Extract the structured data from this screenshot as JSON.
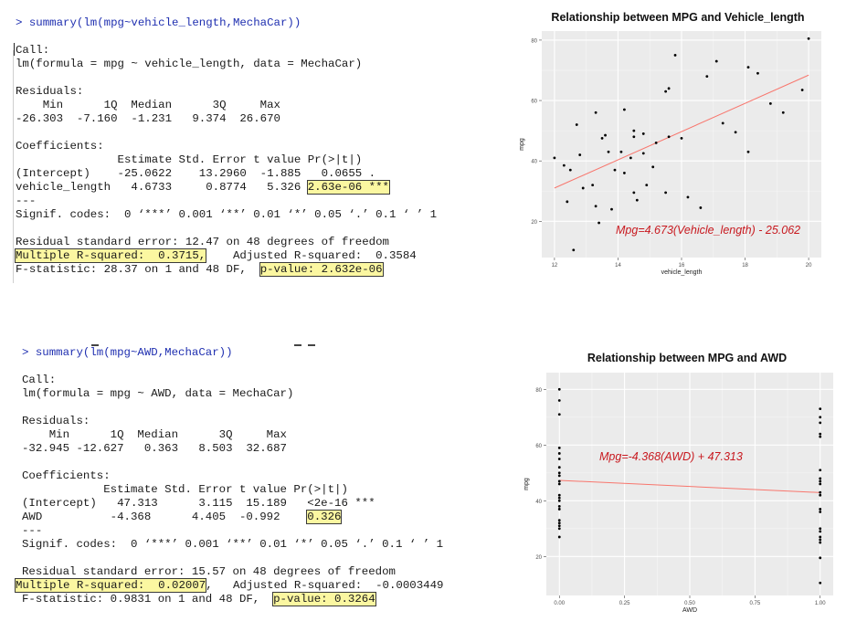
{
  "console1": {
    "lines": [
      "> summary(lm(mpg~vehicle_length,MechaCar))",
      "",
      "Call:",
      "lm(formula = mpg ~ vehicle_length, data = MechaCar)",
      "",
      "Residuals:",
      "    Min      1Q  Median      3Q     Max ",
      "-26.303  -7.160  -1.231   9.374  26.670 ",
      "",
      "Coefficients:",
      "               Estimate Std. Error t value Pr(>|t|)    ",
      "(Intercept)    -25.0622    13.2960  -1.885   0.0655 .  ",
      "vehicle_length   4.6733     0.8774   5.326 ",
      "---",
      "Signif. codes:  0 ‘***’ 0.001 ‘**’ 0.01 ‘*’ 0.05 ‘.’ 0.1 ‘ ’ 1",
      "",
      "Residual standard error: 12.47 on 48 degrees of freedom",
      "",
      "F-statistic: 28.37 on 1 and 48 DF,  "
    ],
    "hl_pvalue_coef": "2.63e-06 ***",
    "hl_r2": "Multiple R-squared:  0.3715,",
    "r2_rest": "\tAdjusted R-squared:  0.3584 ",
    "hl_fpvalue": "p-value: 2.632e-06"
  },
  "console2": {
    "lines": [
      "> summary(lm(mpg~AWD,MechaCar))",
      "",
      "Call:",
      "lm(formula = mpg ~ AWD, data = MechaCar)",
      "",
      "Residuals:",
      "    Min      1Q  Median      3Q     Max ",
      "-32.945 -12.627   0.363   8.503  32.687 ",
      "",
      "Coefficients:",
      "            Estimate Std. Error t value Pr(>|t|)    ",
      "(Intercept)   47.313      3.115  15.189   <2e-16 ***",
      "AWD          -4.368      4.405  -0.992    ",
      "---",
      "Signif. codes:  0 ‘***’ 0.001 ‘**’ 0.01 ‘*’ 0.05 ‘.’ 0.1 ‘ ’ 1",
      "",
      "Residual standard error: 15.57 on 48 degrees of freedom",
      "",
      "F-statistic: 0.9831 on 1 and 48 DF,  "
    ],
    "hl_pvalue_coef": "0.326",
    "hl_r2": "Multiple R-squared:  0.02007",
    "r2_rest": ",\tAdjusted R-squared:  -0.0003449 ",
    "hl_fpvalue": "p-value: 0.3264"
  },
  "chart_data": [
    {
      "type": "scatter",
      "title": "Relationship between MPG and Vehicle_length",
      "xlabel": "vehicle_length",
      "ylabel": "mpg",
      "xlim": [
        11.6,
        20.4
      ],
      "ylim": [
        8,
        83
      ],
      "xticks": [
        12,
        14,
        16,
        18,
        20
      ],
      "yticks": [
        20,
        40,
        60,
        80
      ],
      "grid": true,
      "background": "#ebebeb",
      "line_color": "#f8766d",
      "annotation": "Mpg=4.673(Vehicle_length) - 25.062",
      "fit": {
        "slope": 4.6733,
        "intercept": -25.0622
      },
      "points": [
        [
          12.0,
          41
        ],
        [
          12.3,
          38.5
        ],
        [
          12.4,
          26.5
        ],
        [
          12.5,
          37
        ],
        [
          12.6,
          10.5
        ],
        [
          12.7,
          52
        ],
        [
          12.8,
          42
        ],
        [
          12.9,
          31
        ],
        [
          13.2,
          32
        ],
        [
          13.3,
          56
        ],
        [
          13.3,
          25
        ],
        [
          13.4,
          19.5
        ],
        [
          13.5,
          47.5
        ],
        [
          13.6,
          48.5
        ],
        [
          13.7,
          43
        ],
        [
          13.8,
          24
        ],
        [
          13.9,
          37
        ],
        [
          14.1,
          43
        ],
        [
          14.2,
          57
        ],
        [
          14.2,
          36
        ],
        [
          14.4,
          41
        ],
        [
          14.5,
          50
        ],
        [
          14.5,
          48
        ],
        [
          14.5,
          29.5
        ],
        [
          14.6,
          27
        ],
        [
          14.8,
          49
        ],
        [
          14.8,
          42.5
        ],
        [
          14.9,
          32
        ],
        [
          15.1,
          38
        ],
        [
          15.2,
          46
        ],
        [
          15.5,
          63
        ],
        [
          15.5,
          29.5
        ],
        [
          15.6,
          64
        ],
        [
          15.6,
          48
        ],
        [
          15.8,
          75
        ],
        [
          16.0,
          47.5
        ],
        [
          16.2,
          28
        ],
        [
          16.6,
          24.5
        ],
        [
          16.8,
          68
        ],
        [
          17.1,
          73
        ],
        [
          17.3,
          52.5
        ],
        [
          17.7,
          49.5
        ],
        [
          18.1,
          43
        ],
        [
          18.1,
          71
        ],
        [
          18.4,
          69
        ],
        [
          18.8,
          59
        ],
        [
          19.2,
          56
        ],
        [
          19.8,
          63.5
        ],
        [
          20.0,
          80.5
        ]
      ]
    },
    {
      "type": "scatter",
      "title": "Relationship between MPG and AWD",
      "xlabel": "AWD",
      "ylabel": "mpg",
      "xlim": [
        -0.05,
        1.05
      ],
      "ylim": [
        6,
        86
      ],
      "xticks": [
        "0.00",
        "0.25",
        "0.50",
        "0.75",
        "1.00"
      ],
      "yticks": [
        20,
        40,
        60,
        80
      ],
      "grid": true,
      "background": "#ebebeb",
      "line_color": "#f8766d",
      "annotation": "Mpg=-4.368(AWD) + 47.313",
      "fit": {
        "slope": -4.368,
        "intercept": 47.313
      },
      "points": [
        [
          0,
          80
        ],
        [
          0,
          76
        ],
        [
          0,
          71
        ],
        [
          0,
          59
        ],
        [
          0,
          57
        ],
        [
          0,
          55
        ],
        [
          0,
          52
        ],
        [
          0,
          50
        ],
        [
          0,
          49
        ],
        [
          0,
          47
        ],
        [
          0,
          46
        ],
        [
          0,
          42
        ],
        [
          0,
          41
        ],
        [
          0,
          40
        ],
        [
          0,
          38
        ],
        [
          0,
          37
        ],
        [
          0,
          33
        ],
        [
          0,
          32
        ],
        [
          0,
          31
        ],
        [
          0,
          30
        ],
        [
          0,
          27
        ],
        [
          1,
          73
        ],
        [
          1,
          70
        ],
        [
          1,
          68
        ],
        [
          1,
          64
        ],
        [
          1,
          63
        ],
        [
          1,
          51
        ],
        [
          1,
          48
        ],
        [
          1,
          47
        ],
        [
          1,
          46
        ],
        [
          1,
          43
        ],
        [
          1,
          42
        ],
        [
          1,
          37
        ],
        [
          1,
          36
        ],
        [
          1,
          30
        ],
        [
          1,
          29
        ],
        [
          1,
          27
        ],
        [
          1,
          26
        ],
        [
          1,
          25
        ],
        [
          1,
          19.5
        ],
        [
          1,
          10.5
        ]
      ]
    }
  ]
}
